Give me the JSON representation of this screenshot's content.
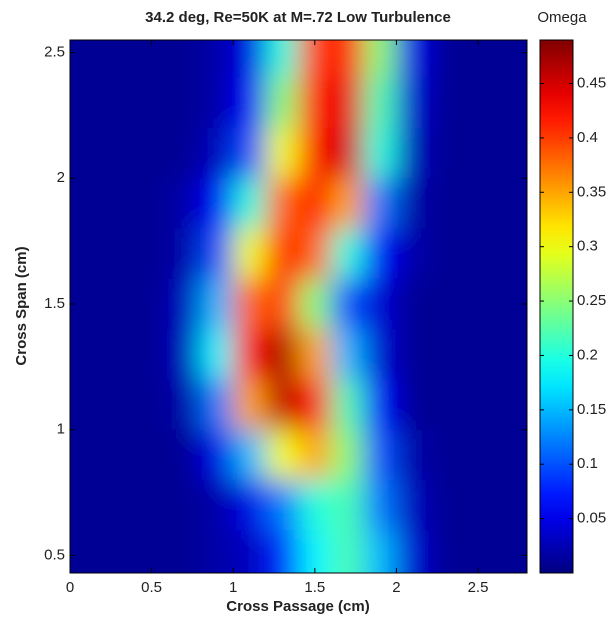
{
  "chart_data": {
    "type": "contour",
    "title": "34.2 deg, Re=50K at M=.72 Low Turbulence",
    "colorbar_label": "Omega",
    "xlabel": "Cross Passage (cm)",
    "ylabel": "Cross Span (cm)",
    "colormap": "jet",
    "x": [
      0.1,
      0.3,
      0.5,
      0.7,
      0.9,
      1.1,
      1.3,
      1.5,
      1.7,
      1.9,
      2.1,
      2.3,
      2.5,
      2.7
    ],
    "y": [
      2.5,
      2.3,
      2.1,
      1.9,
      1.7,
      1.5,
      1.3,
      1.1,
      0.9,
      0.7,
      0.5
    ],
    "z": [
      [
        0.01,
        0.01,
        0.01,
        0.01,
        0.02,
        0.05,
        0.2,
        0.4,
        0.42,
        0.25,
        0.05,
        0.01,
        0.01,
        0.01
      ],
      [
        0.01,
        0.01,
        0.01,
        0.01,
        0.02,
        0.06,
        0.25,
        0.42,
        0.44,
        0.22,
        0.04,
        0.01,
        0.01,
        0.01
      ],
      [
        0.01,
        0.01,
        0.01,
        0.01,
        0.03,
        0.1,
        0.3,
        0.43,
        0.45,
        0.2,
        0.03,
        0.01,
        0.01,
        0.01
      ],
      [
        0.01,
        0.01,
        0.01,
        0.02,
        0.06,
        0.2,
        0.38,
        0.42,
        0.35,
        0.12,
        0.02,
        0.01,
        0.01,
        0.01
      ],
      [
        0.01,
        0.01,
        0.01,
        0.02,
        0.1,
        0.3,
        0.42,
        0.38,
        0.2,
        0.06,
        0.02,
        0.01,
        0.01,
        0.01
      ],
      [
        0.01,
        0.01,
        0.01,
        0.03,
        0.15,
        0.38,
        0.4,
        0.25,
        0.1,
        0.04,
        0.01,
        0.01,
        0.01,
        0.01
      ],
      [
        0.01,
        0.01,
        0.01,
        0.03,
        0.18,
        0.42,
        0.47,
        0.35,
        0.15,
        0.04,
        0.01,
        0.01,
        0.01,
        0.01
      ],
      [
        0.01,
        0.01,
        0.01,
        0.02,
        0.12,
        0.35,
        0.46,
        0.42,
        0.22,
        0.06,
        0.01,
        0.01,
        0.01,
        0.01
      ],
      [
        0.01,
        0.01,
        0.01,
        0.01,
        0.05,
        0.15,
        0.3,
        0.35,
        0.25,
        0.1,
        0.02,
        0.01,
        0.01,
        0.01
      ],
      [
        0.01,
        0.01,
        0.01,
        0.01,
        0.02,
        0.05,
        0.12,
        0.2,
        0.22,
        0.12,
        0.03,
        0.01,
        0.01,
        0.01
      ],
      [
        0.01,
        0.01,
        0.01,
        0.01,
        0.02,
        0.03,
        0.08,
        0.18,
        0.22,
        0.15,
        0.04,
        0.01,
        0.01,
        0.01
      ]
    ],
    "xlim": [
      0,
      2.8
    ],
    "ylim": [
      0.43,
      2.55
    ],
    "xticks": [
      0,
      0.5,
      1,
      1.5,
      2,
      2.5
    ],
    "yticks": [
      0.5,
      1,
      1.5,
      2,
      2.5
    ],
    "clim": [
      0,
      0.49
    ],
    "cticks": [
      0.05,
      0.1,
      0.15,
      0.2,
      0.25,
      0.3,
      0.35,
      0.4,
      0.45
    ]
  }
}
